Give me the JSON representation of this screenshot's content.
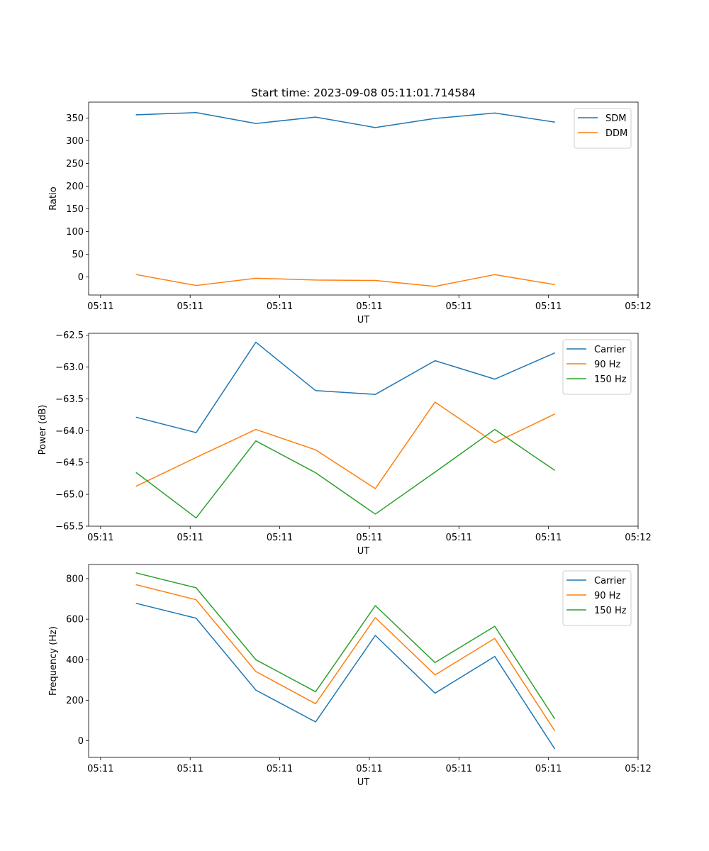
{
  "chart_data": [
    {
      "type": "line",
      "title": "Start time: 2023-09-08 05:11:01.714584",
      "xlabel": "UT",
      "ylabel": "Ratio",
      "x": [
        0.0,
        0.5,
        1.0,
        1.5,
        2.0,
        2.5,
        3.0,
        3.5
      ],
      "xlim": [
        -0.4,
        4.2
      ],
      "xticks": [
        -0.3,
        0.45,
        1.2,
        1.95,
        2.7,
        3.45,
        4.2
      ],
      "xtick_labels": [
        "05:11",
        "05:11",
        "05:11",
        "05:11",
        "05:11",
        "05:11",
        "05:12"
      ],
      "ylim": [
        -40,
        385
      ],
      "yticks": [
        0,
        50,
        100,
        150,
        200,
        250,
        300,
        350
      ],
      "ytick_labels": [
        "0",
        "50",
        "100",
        "150",
        "200",
        "250",
        "300",
        "350"
      ],
      "legend_position": "top-right",
      "series": [
        {
          "name": "SDM",
          "color": "#1f77b4",
          "values": [
            357,
            362,
            338,
            352,
            329,
            349,
            361,
            341
          ]
        },
        {
          "name": "DDM",
          "color": "#ff7f0e",
          "values": [
            5,
            -19,
            -3,
            -7,
            -8,
            -21,
            5,
            -17
          ]
        }
      ]
    },
    {
      "type": "line",
      "title": "",
      "xlabel": "UT",
      "ylabel": "Power (dB)",
      "x": [
        0.0,
        0.5,
        1.0,
        1.5,
        2.0,
        2.5,
        3.0,
        3.5
      ],
      "xlim": [
        -0.4,
        4.2
      ],
      "xticks": [
        -0.3,
        0.45,
        1.2,
        1.95,
        2.7,
        3.45,
        4.2
      ],
      "xtick_labels": [
        "05:11",
        "05:11",
        "05:11",
        "05:11",
        "05:11",
        "05:11",
        "05:12"
      ],
      "ylim": [
        -65.5,
        -62.47
      ],
      "yticks": [
        -65.5,
        -65.0,
        -64.5,
        -64.0,
        -63.5,
        -63.0,
        -62.5
      ],
      "ytick_labels": [
        "−65.5",
        "−65.0",
        "−64.5",
        "−64.0",
        "−63.5",
        "−63.0",
        "−62.5"
      ],
      "legend_position": "top-right",
      "series": [
        {
          "name": "Carrier",
          "color": "#1f77b4",
          "values": [
            -63.79,
            -64.03,
            -62.61,
            -63.37,
            -63.43,
            -62.9,
            -63.19,
            -62.78
          ]
        },
        {
          "name": "90 Hz",
          "color": "#ff7f0e",
          "values": [
            -64.87,
            -64.42,
            -63.98,
            -64.3,
            -64.91,
            -63.55,
            -64.19,
            -63.74
          ]
        },
        {
          "name": "150 Hz",
          "color": "#2ca02c",
          "values": [
            -64.66,
            -65.37,
            -64.16,
            -64.66,
            -65.31,
            -64.65,
            -63.98,
            -64.62
          ]
        }
      ]
    },
    {
      "type": "line",
      "title": "",
      "xlabel": "UT",
      "ylabel": "Frequency (Hz)",
      "x": [
        0.0,
        0.5,
        1.0,
        1.5,
        2.0,
        2.5,
        3.0,
        3.5
      ],
      "xlim": [
        -0.4,
        4.2
      ],
      "xticks": [
        -0.3,
        0.45,
        1.2,
        1.95,
        2.7,
        3.45,
        4.2
      ],
      "xtick_labels": [
        "05:11",
        "05:11",
        "05:11",
        "05:11",
        "05:11",
        "05:11",
        "05:12"
      ],
      "ylim": [
        -82,
        870
      ],
      "yticks": [
        0,
        200,
        400,
        600,
        800
      ],
      "ytick_labels": [
        "0",
        "200",
        "400",
        "600",
        "800"
      ],
      "legend_position": "top-right",
      "series": [
        {
          "name": "Carrier",
          "color": "#1f77b4",
          "values": [
            678,
            605,
            250,
            93,
            520,
            235,
            416,
            -38
          ]
        },
        {
          "name": "90 Hz",
          "color": "#ff7f0e",
          "values": [
            770,
            696,
            342,
            183,
            608,
            325,
            505,
            51
          ]
        },
        {
          "name": "150 Hz",
          "color": "#2ca02c",
          "values": [
            828,
            755,
            400,
            242,
            667,
            386,
            565,
            110
          ]
        }
      ]
    }
  ]
}
